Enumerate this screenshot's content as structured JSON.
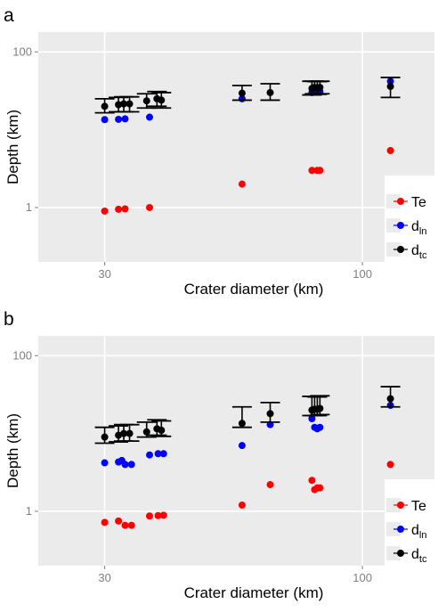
{
  "colors": {
    "panel_bg": "#ebebeb",
    "grid": "#ffffff",
    "Te": "#ff0000",
    "d_ln": "#0000ff",
    "d_tc": "#000000"
  },
  "legend": {
    "te_label": "Te",
    "dln_main": "d",
    "dln_sub": "ln",
    "dtc_main": "d",
    "dtc_sub": "tc"
  },
  "chart_data": [
    {
      "type": "scatter",
      "panel_label": "a",
      "xlabel": "Crater diameter (km)",
      "ylabel": "Depth (km)",
      "x_scale": "log",
      "y_scale": "log",
      "x_ticks": [
        30,
        100
      ],
      "x_tick_labels": [
        "30",
        "100"
      ],
      "y_ticks": [
        1,
        100
      ],
      "y_tick_labels": [
        "1",
        "100"
      ],
      "grid": true,
      "legend_position": "bottom-right",
      "series": [
        {
          "name": "Te",
          "x": [
            30,
            32,
            33,
            37,
            57,
            79,
            81,
            82,
            114
          ],
          "y": [
            0.9,
            0.95,
            0.96,
            1.0,
            2.0,
            3.0,
            3.0,
            3.0,
            5.4
          ]
        },
        {
          "name": "d_ln",
          "x": [
            30,
            32,
            33,
            37,
            57,
            79,
            81,
            82,
            114
          ],
          "y": [
            13.5,
            13.6,
            13.8,
            14.5,
            25.0,
            30.0,
            31.0,
            31.0,
            42.0
          ]
        },
        {
          "name": "d_tc",
          "x": [
            30,
            32,
            32.8,
            33.7,
            36.5,
            38.3,
            39.1,
            57,
            65,
            79,
            80,
            81,
            82,
            114
          ],
          "y": [
            20,
            21,
            21.5,
            21.5,
            23.5,
            25,
            24,
            29.5,
            30,
            34,
            35,
            34.5,
            35,
            36
          ],
          "err_low": [
            16.5,
            17,
            17,
            17,
            19,
            20,
            19,
            24,
            24,
            28,
            29,
            28.5,
            29,
            26
          ],
          "err_high": [
            25,
            26,
            26.5,
            26.5,
            29,
            31,
            30,
            37,
            39,
            42,
            42,
            41.5,
            42,
            47
          ]
        }
      ]
    },
    {
      "type": "scatter",
      "panel_label": "b",
      "xlabel": "Crater diameter (km)",
      "ylabel": "Depth (km)",
      "x_scale": "log",
      "y_scale": "log",
      "x_ticks": [
        30,
        100
      ],
      "x_tick_labels": [
        "30",
        "100"
      ],
      "y_ticks": [
        1,
        100
      ],
      "y_tick_labels": [
        "1",
        "100"
      ],
      "grid": true,
      "legend_position": "bottom-right",
      "series": [
        {
          "name": "Te",
          "x": [
            30,
            32,
            33,
            34,
            37,
            38.5,
            39.5,
            57,
            65,
            79,
            80,
            81,
            82,
            114
          ],
          "y": [
            0.72,
            0.75,
            0.66,
            0.66,
            0.87,
            0.88,
            0.89,
            1.2,
            2.2,
            2.5,
            1.9,
            2.0,
            2.0,
            4.0
          ],
          "note": "reading of the figure"
        },
        {
          "name": "d_ln",
          "x": [
            30,
            32,
            32.5,
            33,
            34,
            37,
            38.5,
            39.5,
            57,
            65,
            79,
            80,
            81,
            82,
            114
          ],
          "y": [
            4.2,
            4.3,
            4.5,
            4.0,
            4.0,
            5.3,
            5.5,
            5.5,
            7.0,
            13.0,
            15.5,
            12.0,
            11.5,
            12.0,
            23.0
          ]
        },
        {
          "name": "d_tc",
          "x": [
            30,
            32,
            32.8,
            33.7,
            36.5,
            38.3,
            39.1,
            57,
            65,
            79,
            80,
            81,
            82,
            114
          ],
          "y": [
            9,
            9.5,
            10,
            10,
            10.5,
            11.5,
            11,
            13.5,
            18,
            20,
            20.5,
            20.5,
            21,
            28
          ],
          "err_low": [
            7.5,
            7.8,
            8,
            8,
            9,
            9.5,
            9.2,
            12,
            14,
            17,
            17,
            17,
            17.5,
            22
          ],
          "err_high": [
            12,
            12.5,
            13,
            13,
            14,
            15,
            14.5,
            22,
            25,
            30,
            30,
            29.5,
            30.5,
            40
          ]
        }
      ]
    }
  ]
}
